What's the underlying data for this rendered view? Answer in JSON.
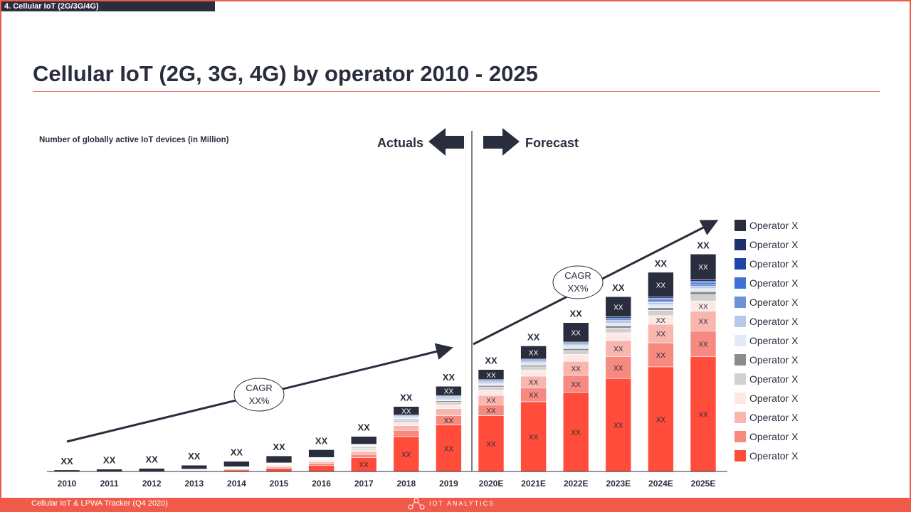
{
  "section_label": "4. Cellular IoT (2G/3G/4G)",
  "title": "Cellular IoT (2G, 3G, 4G) by operator 2010 - 2025",
  "subtitle": "Number of globally active IoT devices (in Million)",
  "actuals_label": "Actuals",
  "forecast_label": "Forecast",
  "footer_text": "Cellular IoT & LPWA Tracker (Q4 2020)",
  "footer_brand": "IOT ANALYTICS",
  "cagr_bubbles": [
    {
      "line1": "CAGR",
      "line2": "XX%"
    },
    {
      "line1": "CAGR",
      "line2": "XX%"
    }
  ],
  "colors": {
    "accent": "#f05a4a",
    "dark": "#2a2d3d",
    "ops": [
      "#2a2d3d",
      "#1f2f6e",
      "#1e46a8",
      "#3f72d4",
      "#6c91d8",
      "#b8c8ea",
      "#e3e9f6",
      "#8c8c8c",
      "#d0d0d0",
      "#fde8e5",
      "#f9b6ae",
      "#f68a80",
      "#ff4c3b"
    ]
  },
  "chart_data": {
    "type": "bar",
    "stacked": true,
    "categories": [
      "2010",
      "2011",
      "2012",
      "2013",
      "2014",
      "2015",
      "2016",
      "2017",
      "2018",
      "2019",
      "2020E",
      "2021E",
      "2022E",
      "2023E",
      "2024E",
      "2025E"
    ],
    "total_labels": [
      "XX",
      "XX",
      "XX",
      "XX",
      "XX",
      "XX",
      "XX",
      "XX",
      "XX",
      "XX",
      "XX",
      "XX",
      "XX",
      "XX",
      "XX",
      "XX"
    ],
    "segment_label": "XX",
    "series": [
      {
        "name": "Operator X",
        "color": "#2a2d3d",
        "values": [
          2,
          3,
          4,
          5,
          7,
          9,
          10,
          10,
          11,
          12,
          13,
          17,
          25,
          26,
          32,
          33
        ]
      },
      {
        "name": "Operator X",
        "color": "#1f2f6e",
        "values": [
          0,
          0,
          0,
          0,
          0,
          0.3,
          0.4,
          0.6,
          0.8,
          1,
          1,
          1,
          1,
          1.5,
          1.5,
          2
        ]
      },
      {
        "name": "Operator X",
        "color": "#1e46a8",
        "values": [
          0,
          0,
          0,
          0,
          0,
          0.3,
          0.4,
          0.6,
          0.8,
          1,
          1,
          1,
          1,
          1.5,
          1.5,
          2
        ]
      },
      {
        "name": "Operator X",
        "color": "#3f72d4",
        "values": [
          0,
          0,
          0,
          0,
          0,
          0.3,
          0.4,
          0.6,
          0.8,
          1,
          1,
          1,
          1,
          1.5,
          2,
          2
        ]
      },
      {
        "name": "Operator X",
        "color": "#6c91d8",
        "values": [
          0,
          0,
          0,
          0,
          0,
          0.3,
          0.4,
          0.6,
          0.8,
          1,
          1,
          1,
          1,
          1.5,
          2,
          2.5
        ]
      },
      {
        "name": "Operator X",
        "color": "#b8c8ea",
        "values": [
          0,
          0,
          0,
          0.3,
          0.4,
          0.4,
          0.5,
          0.8,
          1,
          1.2,
          1.5,
          2,
          2,
          2.5,
          3,
          3
        ]
      },
      {
        "name": "Operator X",
        "color": "#e3e9f6",
        "values": [
          0,
          0,
          0,
          0.3,
          0.4,
          0.5,
          0.6,
          1,
          1.3,
          1.6,
          2,
          2,
          2.5,
          3,
          3.5,
          4
        ]
      },
      {
        "name": "Operator X",
        "color": "#8c8c8c",
        "values": [
          0,
          0,
          0,
          0.3,
          0.4,
          0.5,
          0.6,
          1,
          1.3,
          1.6,
          2,
          2,
          2.5,
          3,
          3.5,
          4
        ]
      },
      {
        "name": "Operator X",
        "color": "#d0d0d0",
        "values": [
          0,
          0,
          0,
          0.3,
          0.5,
          0.8,
          1,
          2,
          3,
          3.5,
          4,
          4,
          5,
          6,
          7,
          8
        ]
      },
      {
        "name": "Operator X",
        "color": "#fde8e5",
        "values": [
          0,
          0,
          0,
          0.3,
          0.6,
          1,
          1.3,
          2.5,
          4,
          5,
          7,
          8,
          9,
          10,
          11,
          13
        ]
      },
      {
        "name": "Operator X",
        "color": "#f9b6ae",
        "values": [
          0,
          0,
          0,
          0.3,
          0.8,
          1.2,
          2,
          3.5,
          6,
          9,
          12,
          15,
          18,
          21,
          24,
          26
        ]
      },
      {
        "name": "Operator X",
        "color": "#f68a80",
        "values": [
          0,
          0,
          0,
          0.3,
          1,
          1.5,
          2.5,
          4,
          8,
          12,
          14,
          18,
          22,
          28,
          31,
          33
        ]
      },
      {
        "name": "Operator X",
        "color": "#ff4c3b",
        "values": [
          0,
          0,
          0,
          1,
          2,
          4,
          8,
          18,
          45,
          60,
          72,
          90,
          102,
          120,
          135,
          148
        ]
      }
    ]
  }
}
